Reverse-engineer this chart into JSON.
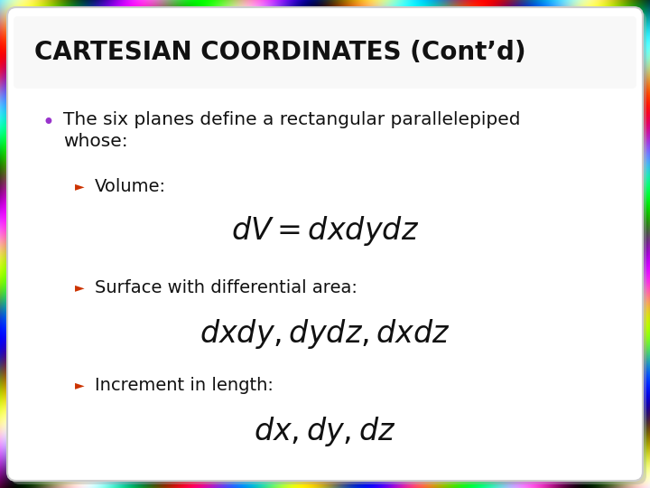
{
  "title": "CARTESIAN COORDINATES (Cont’d)",
  "title_fontsize": 20,
  "bullet_color": "#9933cc",
  "bullet_fontsize": 14.5,
  "arrow_color": "#cc3300",
  "items": [
    {
      "label": "Volume:",
      "formula": "$dV = dxdydz$",
      "label_fontsize": 14,
      "formula_fontsize": 24
    },
    {
      "label": "Surface with differential area:",
      "formula": "$dxdy, dydz, dxdz$",
      "label_fontsize": 14,
      "formula_fontsize": 24
    },
    {
      "label": "Increment in length:",
      "formula": "$dx, dy, dz$",
      "label_fontsize": 14,
      "formula_fontsize": 24
    }
  ],
  "card_bg": "#ffffff",
  "card_edge": "#cccccc",
  "text_color": "#111111",
  "formula_color": "#111111",
  "shadow_color": "#aaaaaa"
}
